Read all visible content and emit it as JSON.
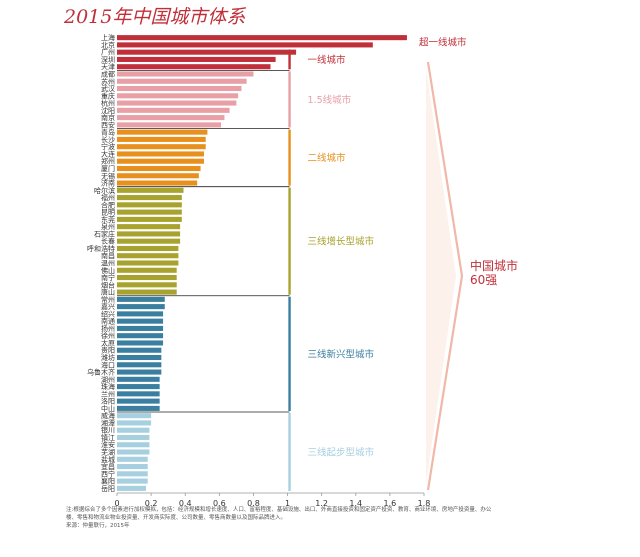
{
  "title": "2015年中国城市体系",
  "chart_data": {
    "type": "bar",
    "orientation": "horizontal",
    "categories": [
      "上海",
      "北京",
      "广州",
      "深圳",
      "天津",
      "成都",
      "苏州",
      "武汉",
      "重庆",
      "杭州",
      "沈阳",
      "南京",
      "西安",
      "青岛",
      "长沙",
      "宁波",
      "大连",
      "郑州",
      "厦门",
      "无锡",
      "济南",
      "哈尔滨",
      "福州",
      "合肥",
      "昆明",
      "东莞",
      "泉州",
      "石家庄",
      "长春",
      "呼和浩特",
      "南昌",
      "温州",
      "佛山",
      "南宁",
      "烟台",
      "唐山",
      "常州",
      "嘉兴",
      "绍兴",
      "南通",
      "扬州",
      "徐州",
      "太原",
      "贵阳",
      "潍坊",
      "海口",
      "乌鲁木齐",
      "湖州",
      "珠海",
      "兰州",
      "洛阳",
      "中山",
      "威海",
      "湘潭",
      "银川",
      "镇江",
      "淮安",
      "芜湖",
      "盐城",
      "宜昌",
      "西宁",
      "襄阳",
      "岳阳"
    ],
    "values": [
      1.7,
      1.5,
      1.05,
      0.93,
      0.9,
      0.8,
      0.76,
      0.73,
      0.71,
      0.7,
      0.66,
      0.63,
      0.61,
      0.53,
      0.52,
      0.52,
      0.51,
      0.51,
      0.49,
      0.48,
      0.47,
      0.39,
      0.38,
      0.38,
      0.38,
      0.38,
      0.37,
      0.37,
      0.37,
      0.36,
      0.36,
      0.36,
      0.35,
      0.35,
      0.35,
      0.35,
      0.28,
      0.28,
      0.27,
      0.27,
      0.27,
      0.27,
      0.27,
      0.26,
      0.26,
      0.26,
      0.26,
      0.25,
      0.25,
      0.25,
      0.25,
      0.25,
      0.2,
      0.2,
      0.19,
      0.19,
      0.19,
      0.19,
      0.18,
      0.18,
      0.18,
      0.18,
      0.17
    ],
    "xlim": [
      0,
      1.8
    ],
    "xticks": [
      "0",
      "0.2",
      "0.4",
      "0.6",
      "0.8",
      "1",
      "1.2",
      "1.4",
      "1.6",
      "1.8"
    ],
    "groups": [
      {
        "name": "超一线城市",
        "start": 0,
        "end": 1,
        "color": "#c0303a"
      },
      {
        "name": "一线城市",
        "start": 2,
        "end": 4,
        "color": "#c0303a"
      },
      {
        "name": "1.5线城市",
        "start": 5,
        "end": 12,
        "color": "#e8a0a6"
      },
      {
        "name": "二线城市",
        "start": 13,
        "end": 20,
        "color": "#e8901e"
      },
      {
        "name": "三线增长型城市",
        "start": 21,
        "end": 35,
        "color": "#a8a22e"
      },
      {
        "name": "三线新兴型城市",
        "start": 36,
        "end": 51,
        "color": "#3a7fa0"
      },
      {
        "name": "三线起步型城市",
        "start": 52,
        "end": 62,
        "color": "#a6cfe0"
      }
    ],
    "bracket_label": [
      "中国城市",
      "60强"
    ],
    "grid": false,
    "legend": "none"
  },
  "footnote": {
    "text": "注:根据综合了多个因素进行加权模拟，包括：经济规模和增长速度、人口、富裕程度、基础设施、出口、外商直接投资和固定资产投资、教育、商业环境、房地产投资量、办公楼、零售和物流业物业投资量、开发商实际度、公司数量、零售商数量以及国际品牌进入。",
    "source": "来源：仲量联行，2015年"
  }
}
